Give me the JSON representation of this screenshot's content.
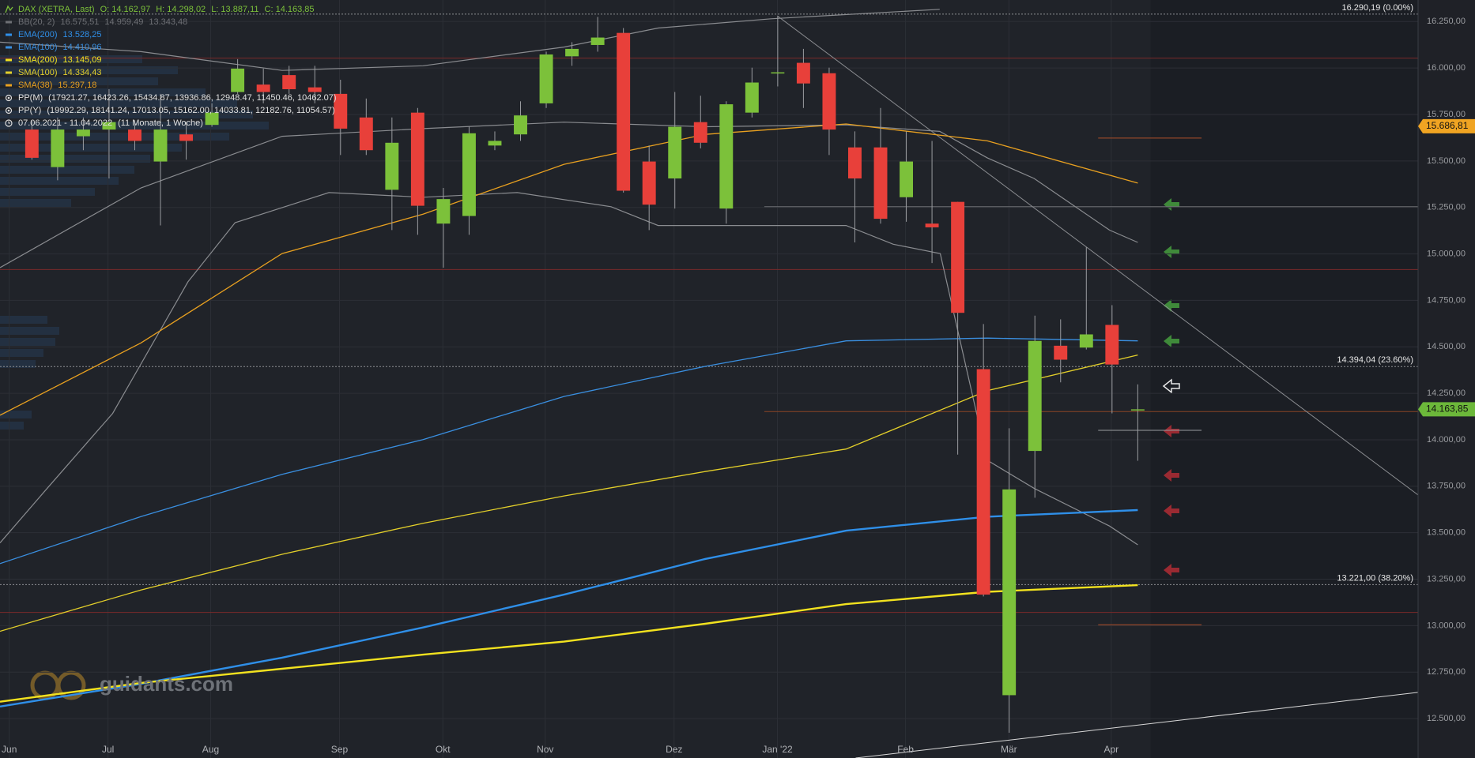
{
  "chart_data": {
    "type": "candlestick",
    "instrument": "DAX (XETRA, Last)",
    "ohlc_labels": [
      "O: 14.162,97",
      "H: 14.298,02",
      "L: 13.887,11",
      "C: 14.163,85"
    ],
    "up_color": "#7cc13a",
    "down_color": "#e8403a",
    "x": [
      0,
      1,
      2,
      3,
      4,
      5,
      6,
      7,
      8,
      9,
      10,
      11,
      12,
      13,
      14,
      15,
      16,
      17,
      18,
      19,
      20,
      21,
      22,
      23,
      24,
      25,
      26,
      27,
      28,
      29,
      30,
      31,
      32,
      33,
      34,
      35,
      36,
      37,
      38,
      39,
      40,
      41,
      42,
      43
    ],
    "open": [
      15669,
      15467,
      15633,
      15669,
      15669,
      15497,
      15643,
      15694,
      15871,
      15911,
      15962,
      15896,
      15861,
      15734,
      15345,
      15760,
      15163,
      15204,
      15583,
      15643,
      15810,
      16063,
      16124,
      16189,
      15497,
      15406,
      15709,
      15244,
      15760,
      15972,
      16028,
      15972,
      15573,
      15573,
      15305,
      15163,
      15280,
      14380,
      12626,
      13940,
      14506,
      14496,
      14618,
      14162.97
    ],
    "high": [
      15719,
      15734,
      15734,
      15886,
      15719,
      15861,
      15709,
      15810,
      16048,
      15997,
      16012,
      16012,
      15937,
      15836,
      15734,
      15785,
      15355,
      15684,
      15659,
      15821,
      16088,
      16139,
      16275,
      16215,
      15583,
      15871,
      15851,
      15821,
      16002,
      16280,
      16103,
      16002,
      15659,
      15785,
      15659,
      15608,
      15280,
      14623,
      14062,
      14668,
      14648,
      15037,
      14724,
      14298.02
    ],
    "low": [
      15507,
      15396,
      15558,
      15406,
      15558,
      15153,
      15507,
      15684,
      15861,
      15810,
      15861,
      15810,
      15532,
      15532,
      15128,
      15103,
      14926,
      15103,
      15558,
      15608,
      15785,
      16012,
      16088,
      15330,
      15128,
      15244,
      15568,
      15163,
      15734,
      15901,
      15785,
      15532,
      15062,
      15163,
      15173,
      14951,
      13920,
      13157,
      12424,
      13688,
      14309,
      14486,
      14142,
      13887.11
    ],
    "close": [
      15517,
      15669,
      15669,
      15709,
      15608,
      15669,
      15608,
      15760,
      15997,
      15871,
      15886,
      15871,
      15674,
      15558,
      15598,
      15259,
      15295,
      15649,
      15608,
      15745,
      16073,
      16103,
      16164,
      15340,
      15265,
      15684,
      15598,
      15805,
      15922,
      15977,
      15917,
      15669,
      15406,
      15189,
      15497,
      15143,
      14683,
      13167,
      13733,
      14532,
      14431,
      14567,
      14405,
      14163.85
    ],
    "bollinger": {
      "name": "BB(20, 2)",
      "legend_values": [
        "16.575,51",
        "14.959,49",
        "13.343,48"
      ],
      "color": "#8a8c90",
      "bands": [
        {
          "x": [
            -1.24,
            4.24,
            9.73,
            15.21,
            20.69,
            24.35,
            28.74,
            35.3
          ],
          "values": [
            16139,
            16088,
            15987,
            16012,
            16113,
            16215,
            16265,
            16316
          ]
        },
        {
          "x": [
            -1.24,
            4.24,
            9.73,
            15.21,
            20.69,
            26.18,
            31.66,
            35.3,
            37.15,
            38.97,
            41.9,
            43
          ],
          "values": [
            14926,
            15355,
            15633,
            15674,
            15709,
            15684,
            15694,
            15659,
            15517,
            15406,
            15128,
            15062
          ]
        },
        {
          "x": [
            -1.24,
            0.59,
            3.14,
            6.07,
            7.9,
            11.55,
            15.21,
            18.87,
            22.52,
            24.35,
            28.0,
            31.66,
            33.49,
            35.32,
            37.15,
            38.98,
            41.9,
            43
          ],
          "values": [
            13445,
            13738,
            14142,
            14850,
            15168,
            15330,
            15305,
            15330,
            15254,
            15153,
            15153,
            15153,
            15052,
            15002,
            13890,
            13738,
            13536,
            13435
          ]
        }
      ]
    },
    "overlays": [
      {
        "name": "EMA(200)",
        "legend_value": "13.528,25",
        "color": "#2f8fe8",
        "width": 2.4,
        "x": [
          -1.24,
          4.24,
          9.73,
          15.21,
          20.69,
          26.18,
          31.66,
          37.15,
          43
        ],
        "values": [
          12565,
          12687,
          12828,
          12990,
          13167,
          13359,
          13511,
          13586,
          13622
        ]
      },
      {
        "name": "EMA(100)",
        "legend_value": "14.410,96",
        "color": "#3a8fe0",
        "width": 1.3,
        "x": [
          -1.24,
          4.24,
          9.73,
          15.21,
          20.69,
          26.18,
          31.66,
          37.15,
          43
        ],
        "values": [
          13334,
          13587,
          13814,
          14001,
          14233,
          14395,
          14532,
          14547,
          14532
        ]
      },
      {
        "name": "SMA(200)",
        "legend_value": "13.145,09",
        "color": "#f2e21f",
        "width": 2.4,
        "x": [
          -1.24,
          4.24,
          9.73,
          15.21,
          20.69,
          26.18,
          31.66,
          37.15,
          43
        ],
        "values": [
          12591,
          12692,
          12768,
          12844,
          12914,
          13010,
          13116,
          13182,
          13218
        ]
      },
      {
        "name": "SMA(100)",
        "legend_value": "14.334,43",
        "color": "#e3cf2a",
        "width": 1.3,
        "x": [
          -1.24,
          4.24,
          9.73,
          15.21,
          20.69,
          26.18,
          31.66,
          37.15,
          43
        ],
        "values": [
          12970,
          13192,
          13384,
          13551,
          13698,
          13829,
          13950,
          14264,
          14456
        ]
      },
      {
        "name": "SMA(38)",
        "legend_value": "15.297,18",
        "color": "#e8a020",
        "width": 1.3,
        "x": [
          -1.24,
          4.24,
          9.73,
          15.21,
          20.69,
          26.18,
          31.66,
          37.15,
          43
        ],
        "values": [
          14132,
          14521,
          15002,
          15214,
          15482,
          15643,
          15699,
          15608,
          15381
        ]
      }
    ],
    "pivots": [
      {
        "name": "PP(M)",
        "levels": "(17921.27, 16423.26, 15434.87, 13936.86, 12948.47, 11450.46, 10462.07)"
      },
      {
        "name": "PP(Y)",
        "levels": "(19992.29, 18141.24, 17013.05, 15162.00, 14033.81, 12182.76, 11054.57)"
      }
    ],
    "period": "07.06.2021 - 11.04.2022",
    "duration": "(11 Monate, 1 Woche)",
    "xlim": [
      -1.24,
      53.9
    ],
    "xticks": [
      {
        "value": -0.88,
        "label": "Jun"
      },
      {
        "value": 2.96,
        "label": "Jul"
      },
      {
        "value": 6.95,
        "label": "Aug"
      },
      {
        "value": 11.96,
        "label": "Sep"
      },
      {
        "value": 15.98,
        "label": "Okt"
      },
      {
        "value": 19.96,
        "label": "Nov"
      },
      {
        "value": 24.97,
        "label": "Dez"
      },
      {
        "value": 28.99,
        "label": "Jan '22"
      },
      {
        "value": 33.97,
        "label": "Feb"
      },
      {
        "value": 37.99,
        "label": "Mär"
      },
      {
        "value": 41.97,
        "label": "Apr"
      }
    ],
    "ylim": [
      12288,
      16366
    ],
    "yticks": [
      {
        "value": 12500,
        "label": "12.500,00"
      },
      {
        "value": 12750,
        "label": "12.750,00"
      },
      {
        "value": 13000,
        "label": "13.000,00"
      },
      {
        "value": 13250,
        "label": "13.250,00"
      },
      {
        "value": 13500,
        "label": "13.500,00"
      },
      {
        "value": 13750,
        "label": "13.750,00"
      },
      {
        "value": 14000,
        "label": "14.000,00"
      },
      {
        "value": 14250,
        "label": "14.250,00"
      },
      {
        "value": 14500,
        "label": "14.500,00"
      },
      {
        "value": 14750,
        "label": "14.750,00"
      },
      {
        "value": 15000,
        "label": "15.000,00"
      },
      {
        "value": 15250,
        "label": "15.250,00"
      },
      {
        "value": 15500,
        "label": "15.500,00"
      },
      {
        "value": 15750,
        "label": "15.750,00"
      },
      {
        "value": 16000,
        "label": "16.000,00"
      },
      {
        "value": 16250,
        "label": "16.250,00"
      }
    ],
    "grid": true,
    "fib_levels": [
      {
        "value": 16290.19,
        "label": "16.290,19 (0.00%)"
      },
      {
        "value": 14394.04,
        "label": "14.394,04 (23.60%)"
      },
      {
        "value": 13221.0,
        "label": "13.221,00 (38.20%)"
      }
    ],
    "price_badges": [
      {
        "value": 15686.81,
        "label": "15.686,81",
        "color": "#f0a422"
      },
      {
        "value": 14163.85,
        "label": "14.163,85",
        "color": "#6cb83a"
      }
    ],
    "levels": [
      {
        "value": 16053,
        "color": "#7a2a2a",
        "x": [
          -1.24,
          53.9
        ]
      },
      {
        "value": 14916,
        "color": "#7a2a2a",
        "x": [
          -1.24,
          53.9
        ]
      },
      {
        "value": 13071,
        "color": "#7a2a2a",
        "x": [
          -1.24,
          53.9
        ]
      },
      {
        "value": 15254,
        "color": "#6c6e72",
        "x": [
          28.48,
          53.9
        ]
      },
      {
        "value": 14152,
        "color": "#8a4424",
        "x": [
          28.48,
          53.9
        ]
      },
      {
        "value": 15623,
        "color": "#b0502a",
        "x": [
          41.46,
          45.48
        ]
      },
      {
        "value": 13005,
        "color": "#b0502a",
        "x": [
          41.46,
          45.48
        ]
      },
      {
        "value": 14051,
        "color": "#9a9ca0",
        "x": [
          41.46,
          45.48
        ]
      }
    ],
    "trendlines": [
      {
        "color": "#8a8c90",
        "x": [
          28.99,
          53.9
        ],
        "values": [
          16280,
          13703
        ]
      },
      {
        "color": "#d8d8d8",
        "x": [
          32.03,
          53.9
        ],
        "values": [
          12288,
          12641
        ]
      }
    ],
    "watermark": "guidants.com"
  }
}
